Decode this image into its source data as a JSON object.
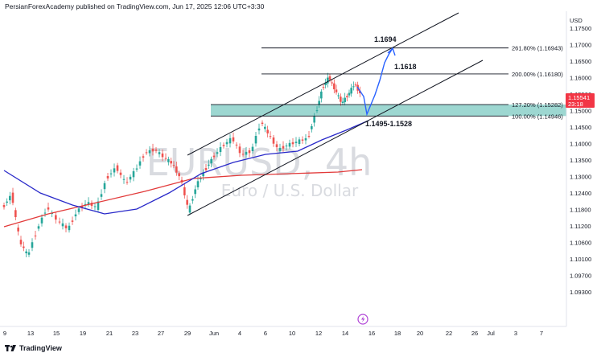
{
  "header": {
    "text": "PersianForexAcademy published on TradingView.com, Jun 17, 2025 12:06 UTC+3:30"
  },
  "watermark": {
    "title": "EURUSD, 4h",
    "subtitle": "Euro / U.S. Dollar"
  },
  "price_axis": {
    "currency": "USD",
    "labels": [
      "1.17500",
      "1.17000",
      "1.16500",
      "1.16000",
      "1.15500",
      "1.15000",
      "1.14500",
      "1.14000",
      "1.13500",
      "1.13000",
      "1.12400",
      "1.11800",
      "1.11200",
      "1.10600",
      "1.10100",
      "1.09700",
      "1.09300"
    ],
    "current_price": "1.15541",
    "countdown": "23:18",
    "current_price_color": "#f23645"
  },
  "time_axis": {
    "labels": [
      "9",
      "13",
      "15",
      "19",
      "21",
      "23",
      "27",
      "29",
      "Jun",
      "4",
      "6",
      "10",
      "12",
      "14",
      "16",
      "18",
      "20",
      "22",
      "26",
      "Jul",
      "3",
      "7"
    ]
  },
  "fib_levels": [
    {
      "label": "261.80% (1.16943)",
      "price": 1.16943
    },
    {
      "label": "200.00% (1.16180)",
      "price": 1.1618
    },
    {
      "label": "127.20% (1.15282)",
      "price": 1.15282
    },
    {
      "label": "100.00% (1.14946)",
      "price": 1.14946
    }
  ],
  "targets": [
    {
      "label": "1.1694",
      "price": 1.1694
    },
    {
      "label": "1.1618",
      "price": 1.1618
    },
    {
      "label": "1.1495-1.1528",
      "price": 1.1495
    }
  ],
  "zone": {
    "from": 1.14946,
    "to": 1.15282,
    "color": "#26a69a"
  },
  "colors": {
    "up": "#26a69a",
    "down": "#ef5350",
    "ma_fast": "#2929c9",
    "ma_slow": "#e23a3a",
    "projection": "#2962ff",
    "channel": "#131722"
  },
  "footer": {
    "brand": "TradingView"
  },
  "icons": {
    "logo": "tradingview-logo-icon",
    "marker": "lightning-marker-icon"
  }
}
